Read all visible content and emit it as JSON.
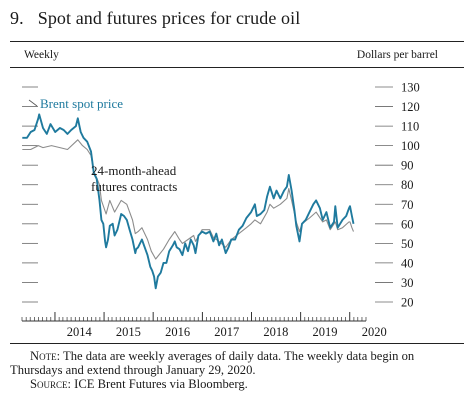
{
  "figure": {
    "number": "9.",
    "title": "Spot and futures prices for crude oil"
  },
  "chart_data": {
    "type": "line",
    "frequency_label": "Weekly",
    "ylabel": "Dollars per barrel",
    "ylim": [
      20,
      130
    ],
    "yticks": [
      20,
      30,
      40,
      50,
      60,
      70,
      80,
      90,
      100,
      110,
      120,
      130
    ],
    "xlim": [
      "2013-05-01",
      "2020-05-01"
    ],
    "xticks": [
      "2014",
      "2015",
      "2016",
      "2017",
      "2018",
      "2019",
      "2020"
    ],
    "grid": false,
    "series": [
      {
        "name": "Brent spot price",
        "color": "#1f7a9e",
        "points": [
          [
            "2013-05-03",
            104
          ],
          [
            "2013-06-07",
            104
          ],
          [
            "2013-07-05",
            107
          ],
          [
            "2013-08-02",
            108
          ],
          [
            "2013-08-30",
            114
          ],
          [
            "2013-09-06",
            116
          ],
          [
            "2013-10-04",
            109
          ],
          [
            "2013-11-01",
            106
          ],
          [
            "2013-11-29",
            111
          ],
          [
            "2014-01-03",
            107
          ],
          [
            "2014-02-07",
            109
          ],
          [
            "2014-03-07",
            108
          ],
          [
            "2014-04-04",
            106
          ],
          [
            "2014-05-02",
            108
          ],
          [
            "2014-06-06",
            110
          ],
          [
            "2014-06-20",
            114
          ],
          [
            "2014-07-11",
            107
          ],
          [
            "2014-08-01",
            104
          ],
          [
            "2014-08-29",
            102
          ],
          [
            "2014-09-26",
            97
          ],
          [
            "2014-10-17",
            86
          ],
          [
            "2014-11-07",
            83
          ],
          [
            "2014-11-28",
            72
          ],
          [
            "2014-12-12",
            62
          ],
          [
            "2014-12-26",
            60
          ],
          [
            "2015-01-09",
            51
          ],
          [
            "2015-01-16",
            48
          ],
          [
            "2015-01-30",
            52
          ],
          [
            "2015-02-13",
            59
          ],
          [
            "2015-03-06",
            60
          ],
          [
            "2015-03-20",
            54
          ],
          [
            "2015-04-10",
            57
          ],
          [
            "2015-05-08",
            65
          ],
          [
            "2015-05-29",
            64
          ],
          [
            "2015-06-19",
            62
          ],
          [
            "2015-07-10",
            57
          ],
          [
            "2015-07-31",
            52
          ],
          [
            "2015-08-21",
            45
          ],
          [
            "2015-08-28",
            47
          ],
          [
            "2015-09-11",
            48
          ],
          [
            "2015-10-09",
            52
          ],
          [
            "2015-10-30",
            48
          ],
          [
            "2015-11-20",
            44
          ],
          [
            "2015-12-11",
            38
          ],
          [
            "2015-12-25",
            36
          ],
          [
            "2016-01-08",
            33
          ],
          [
            "2016-01-20",
            27
          ],
          [
            "2016-02-05",
            33
          ],
          [
            "2016-02-26",
            35
          ],
          [
            "2016-03-18",
            40
          ],
          [
            "2016-04-08",
            40
          ],
          [
            "2016-04-29",
            46
          ],
          [
            "2016-05-27",
            49
          ],
          [
            "2016-06-10",
            51
          ],
          [
            "2016-06-24",
            48
          ],
          [
            "2016-07-15",
            47
          ],
          [
            "2016-08-05",
            44
          ],
          [
            "2016-08-26",
            50
          ],
          [
            "2016-09-16",
            46
          ],
          [
            "2016-10-07",
            52
          ],
          [
            "2016-10-28",
            49
          ],
          [
            "2016-11-11",
            45
          ],
          [
            "2016-12-02",
            54
          ],
          [
            "2016-12-30",
            56
          ],
          [
            "2017-01-27",
            55
          ],
          [
            "2017-02-24",
            56
          ],
          [
            "2017-03-24",
            51
          ],
          [
            "2017-04-14",
            55
          ],
          [
            "2017-05-05",
            49
          ],
          [
            "2017-05-26",
            52
          ],
          [
            "2017-06-23",
            45
          ],
          [
            "2017-07-14",
            48
          ],
          [
            "2017-08-04",
            52
          ],
          [
            "2017-09-01",
            52
          ],
          [
            "2017-09-29",
            57
          ],
          [
            "2017-10-27",
            59
          ],
          [
            "2017-11-24",
            63
          ],
          [
            "2017-12-29",
            66
          ],
          [
            "2018-01-26",
            70
          ],
          [
            "2018-02-09",
            64
          ],
          [
            "2018-03-09",
            65
          ],
          [
            "2018-04-06",
            67
          ],
          [
            "2018-04-27",
            74
          ],
          [
            "2018-05-18",
            79
          ],
          [
            "2018-06-15",
            73
          ],
          [
            "2018-07-06",
            77
          ],
          [
            "2018-08-03",
            73
          ],
          [
            "2018-08-31",
            77
          ],
          [
            "2018-09-21",
            79
          ],
          [
            "2018-10-05",
            85
          ],
          [
            "2018-10-26",
            77
          ],
          [
            "2018-11-16",
            67
          ],
          [
            "2018-11-30",
            59
          ],
          [
            "2018-12-24",
            51
          ],
          [
            "2019-01-11",
            60
          ],
          [
            "2019-02-08",
            62
          ],
          [
            "2019-03-08",
            66
          ],
          [
            "2019-04-05",
            70
          ],
          [
            "2019-04-26",
            72
          ],
          [
            "2019-05-24",
            68
          ],
          [
            "2019-06-14",
            62
          ],
          [
            "2019-07-12",
            66
          ],
          [
            "2019-08-09",
            58
          ],
          [
            "2019-09-06",
            61
          ],
          [
            "2019-09-16",
            69
          ],
          [
            "2019-10-04",
            58
          ],
          [
            "2019-11-08",
            62
          ],
          [
            "2019-12-06",
            64
          ],
          [
            "2019-12-27",
            68
          ],
          [
            "2020-01-03",
            69
          ],
          [
            "2020-01-17",
            64
          ],
          [
            "2020-01-29",
            60
          ]
        ]
      },
      {
        "name": "24-month-ahead futures contracts",
        "color": "#8c8c8c",
        "points": [
          [
            "2013-05-03",
            98
          ],
          [
            "2013-07-05",
            98
          ],
          [
            "2013-08-30",
            100
          ],
          [
            "2013-10-04",
            99
          ],
          [
            "2013-12-06",
            100
          ],
          [
            "2014-02-07",
            99
          ],
          [
            "2014-04-04",
            98
          ],
          [
            "2014-06-20",
            103
          ],
          [
            "2014-07-25",
            100
          ],
          [
            "2014-08-29",
            98
          ],
          [
            "2014-09-26",
            95
          ],
          [
            "2014-10-17",
            87
          ],
          [
            "2014-11-28",
            80
          ],
          [
            "2014-12-12",
            72
          ],
          [
            "2015-01-16",
            65
          ],
          [
            "2015-02-13",
            72
          ],
          [
            "2015-03-20",
            66
          ],
          [
            "2015-05-08",
            72
          ],
          [
            "2015-06-19",
            70
          ],
          [
            "2015-07-31",
            62
          ],
          [
            "2015-08-21",
            55
          ],
          [
            "2015-09-11",
            56
          ],
          [
            "2015-10-09",
            58
          ],
          [
            "2015-11-20",
            52
          ],
          [
            "2015-12-18",
            46
          ],
          [
            "2016-01-20",
            42
          ],
          [
            "2016-02-12",
            44
          ],
          [
            "2016-03-18",
            47
          ],
          [
            "2016-04-29",
            52
          ],
          [
            "2016-06-10",
            56
          ],
          [
            "2016-07-15",
            52
          ],
          [
            "2016-08-05",
            50
          ],
          [
            "2016-09-16",
            52
          ],
          [
            "2016-10-28",
            54
          ],
          [
            "2016-11-11",
            51
          ],
          [
            "2016-12-30",
            57
          ],
          [
            "2017-02-24",
            57
          ],
          [
            "2017-03-24",
            53
          ],
          [
            "2017-05-05",
            51
          ],
          [
            "2017-06-23",
            48
          ],
          [
            "2017-08-04",
            52
          ],
          [
            "2017-09-29",
            55
          ],
          [
            "2017-11-24",
            58
          ],
          [
            "2017-12-29",
            60
          ],
          [
            "2018-01-26",
            62
          ],
          [
            "2018-03-09",
            60
          ],
          [
            "2018-04-27",
            66
          ],
          [
            "2018-05-18",
            70
          ],
          [
            "2018-06-15",
            68
          ],
          [
            "2018-08-03",
            70
          ],
          [
            "2018-09-21",
            73
          ],
          [
            "2018-10-05",
            78
          ],
          [
            "2018-10-26",
            72
          ],
          [
            "2018-11-30",
            61
          ],
          [
            "2018-12-24",
            56
          ],
          [
            "2019-01-11",
            60
          ],
          [
            "2019-03-08",
            63
          ],
          [
            "2019-04-26",
            66
          ],
          [
            "2019-06-14",
            61
          ],
          [
            "2019-07-12",
            62
          ],
          [
            "2019-08-09",
            57
          ],
          [
            "2019-09-16",
            61
          ],
          [
            "2019-10-04",
            57
          ],
          [
            "2019-11-08",
            58
          ],
          [
            "2019-12-27",
            61
          ],
          [
            "2020-01-03",
            61
          ],
          [
            "2020-01-17",
            58
          ],
          [
            "2020-01-29",
            56
          ]
        ]
      }
    ],
    "annotations": [
      "Brent spot price",
      "24-month-ahead futures contracts"
    ]
  },
  "notes": {
    "note_label": "Note:",
    "note_text": "The data are weekly averages of daily data. The weekly data begin on Thursdays and extend through January 29, 2020.",
    "source_label": "Source:",
    "source_text": "ICE Brent Futures via Bloomberg."
  }
}
